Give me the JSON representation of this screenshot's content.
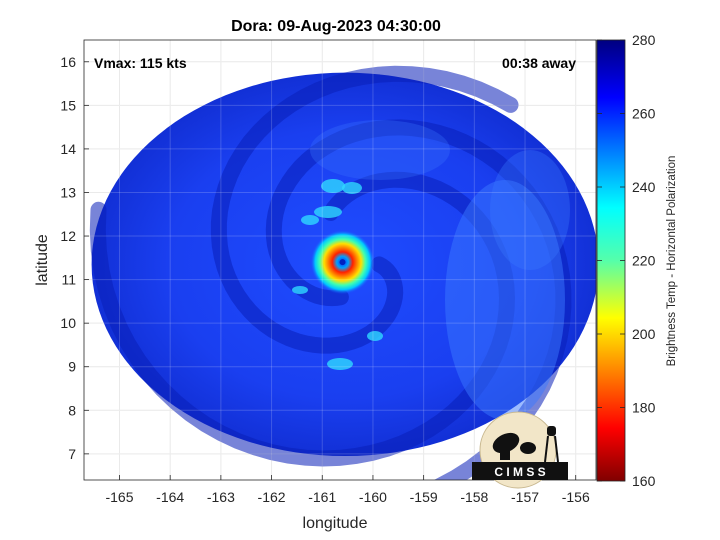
{
  "figure": {
    "title": "Dora: 09-Aug-2023 04:30:00",
    "annotations": {
      "left": "Vmax: 115 kts",
      "right": "00:38 away"
    },
    "logo_text": "C I M S S"
  },
  "chart_data": {
    "type": "heatmap",
    "title": "Dora: 09-Aug-2023 04:30:00",
    "xlabel": "longitude",
    "ylabel": "latitude",
    "xlim": [
      -165.7,
      -155.6
    ],
    "ylim": [
      6.4,
      16.5
    ],
    "xticks": [
      -165,
      -164,
      -163,
      -162,
      -161,
      -160,
      -159,
      -158,
      -157,
      -156
    ],
    "yticks": [
      7,
      8,
      9,
      10,
      11,
      12,
      13,
      14,
      15,
      16
    ],
    "grid": true,
    "colormap": "jet",
    "colorbar": {
      "label": "Brightness Temp - Horizontal Polarization",
      "range": [
        160,
        280
      ],
      "ticks": [
        160,
        180,
        200,
        220,
        240,
        260,
        280
      ]
    },
    "storm_center": {
      "lon": -160.6,
      "lat": 11.4
    },
    "swath": {
      "center_lon": -160.55,
      "center_lat": 11.35,
      "radius_deg": 5.0
    }
  }
}
